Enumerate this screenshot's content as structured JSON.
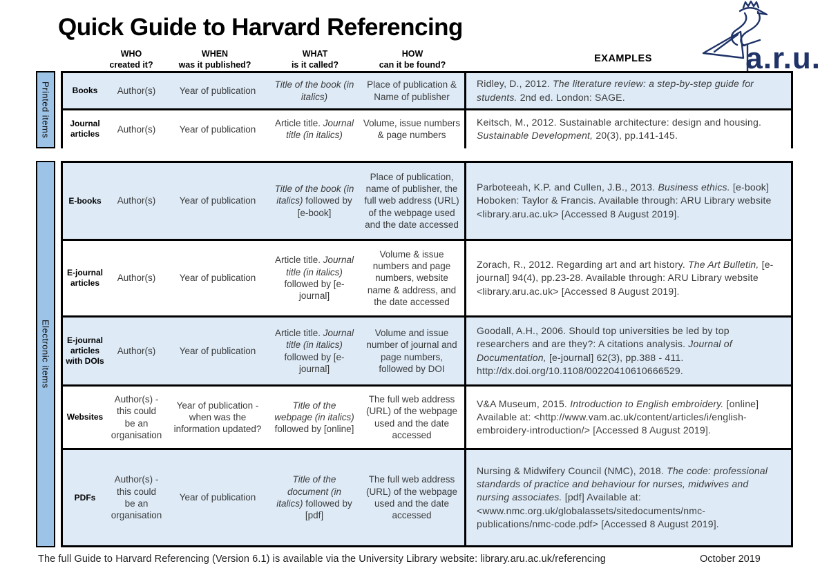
{
  "page": {
    "title": "Quick Guide to Harvard Referencing",
    "footer_text": "The full Guide to Harvard Referencing (Version 6.1) is available via the University Library website: library.aru.ac.uk/referencing",
    "footer_date": "October 2019"
  },
  "logo": {
    "brand": "a.r.u.",
    "icon": "aru-heron-crown-logo"
  },
  "colors": {
    "sidebar": "#9DC3E6",
    "shaded_row": "#DEEBF7",
    "border": "#000000",
    "navy": "#1F3368"
  },
  "header_columns": [
    {
      "line1": "WHO",
      "line2": "created it?"
    },
    {
      "line1": "WHEN",
      "line2": "was it published?"
    },
    {
      "line1": "WHAT",
      "line2": "is it called?"
    },
    {
      "line1": "HOW",
      "line2": "can it be found?"
    }
  ],
  "examples_header": "EXAMPLES",
  "sections": [
    {
      "label": "Printed items",
      "rows": [
        {
          "type": "Books",
          "shaded": true,
          "who": "Author(s)",
          "when": "Year of publication",
          "what": [
            [
              "Title of the book (in italics)",
              "i"
            ]
          ],
          "how": "Place of publication & Name of publisher",
          "example": [
            [
              "Ridley, D., 2012. ",
              "n"
            ],
            [
              "The literature review: a step-by-step guide for students. ",
              "i"
            ],
            [
              "2nd ed. London: SAGE.",
              "n"
            ]
          ]
        },
        {
          "type": "Journal articles",
          "shaded": false,
          "who": "Author(s)",
          "when": "Year of publication",
          "what": [
            [
              "Article title. ",
              "n"
            ],
            [
              "Journal title (in italics)",
              "i"
            ]
          ],
          "how": "Volume, issue numbers & page numbers",
          "example": [
            [
              "Keitsch, M., 2012. Sustainable architecture: design and housing. ",
              "n"
            ],
            [
              "Sustainable Development, ",
              "i"
            ],
            [
              "20(3), pp.141-145.",
              "n"
            ]
          ]
        }
      ]
    },
    {
      "label": "Electronic items",
      "rows": [
        {
          "type": "E-books",
          "shaded": true,
          "who": "Author(s)",
          "when": "Year of publication",
          "what": [
            [
              "Title of the book (in italics)",
              "i"
            ],
            [
              " followed by [e-book]",
              "n"
            ]
          ],
          "how": "Place of publication, name of publisher, the full web address (URL) of the webpage used and the date accessed",
          "example": [
            [
              "Parboteeah, K.P. and Cullen, J.B., 2013. ",
              "n"
            ],
            [
              "Business ethics. ",
              "i"
            ],
            [
              "[e-book] Hoboken: Taylor & Francis. Available through: ARU Library website <library.aru.ac.uk> [Accessed 8 August 2019].",
              "n"
            ]
          ]
        },
        {
          "type": "E-journal articles",
          "shaded": false,
          "who": "Author(s)",
          "when": "Year of publication",
          "what": [
            [
              "Article title. ",
              "n"
            ],
            [
              "Journal title (in italics)",
              "i"
            ],
            [
              " followed by [e-journal]",
              "n"
            ]
          ],
          "how": "Volume & issue numbers and page numbers, website name & address, and the date accessed",
          "example": [
            [
              "Zorach, R., 2012. Regarding art and art history. ",
              "n"
            ],
            [
              "The Art Bulletin, ",
              "i"
            ],
            [
              "[e-journal] 94(4), pp.23-28. Available through: ARU Library website <library.aru.ac.uk> [Accessed 8 August 2019].",
              "n"
            ]
          ]
        },
        {
          "type": "E-journal articles with DOIs",
          "shaded": true,
          "who": "Author(s)",
          "when": "Year of publication",
          "what": [
            [
              "Article title. ",
              "n"
            ],
            [
              "Journal title (in italics)",
              "i"
            ],
            [
              " followed by [e-journal]",
              "n"
            ]
          ],
          "how": "Volume and issue number of journal and page numbers, followed by DOI",
          "example": [
            [
              "Goodall, A.H., 2006. Should top universities be led by top researchers and are they?: A citations analysis. ",
              "n"
            ],
            [
              "Journal of Documentation, ",
              "i"
            ],
            [
              "[e-journal] 62(3), pp.388 - 411. http://dx.doi.org/10.1108/00220410610666529.",
              "n"
            ]
          ]
        },
        {
          "type": "Websites",
          "shaded": false,
          "who": "Author(s) - this could be an organisation",
          "when": "Year of publication - when was the information updated?",
          "what": [
            [
              "Title of the webpage (in italics)",
              "i"
            ],
            [
              " followed by [online]",
              "n"
            ]
          ],
          "how": "The full web address (URL) of the webpage used and the date accessed",
          "example": [
            [
              "V&A Museum, 2015. ",
              "n"
            ],
            [
              "Introduction to English embroidery. ",
              "i"
            ],
            [
              "[online] Available at: <http://www.vam.ac.uk/content/articles/i/english-embroidery-introduction/> [Accessed 8 August 2019].",
              "n"
            ]
          ]
        },
        {
          "type": "PDFs",
          "shaded": true,
          "who": "Author(s) - this could be an organisation",
          "when": "Year of publication",
          "what": [
            [
              "Title of the document (in italics)",
              "i"
            ],
            [
              " followed by [pdf]",
              "n"
            ]
          ],
          "how": "The full web address (URL) of the webpage used and the date accessed",
          "example": [
            [
              "Nursing & Midwifery Council (NMC), 2018. ",
              "n"
            ],
            [
              "The code: professional standards of practice and behaviour for nurses, midwives and nursing associates. ",
              "i"
            ],
            [
              "[pdf] Available at: <www.nmc.org.uk/globalassets/sitedocuments/nmc-publications/nmc-code.pdf> [Accessed 8 August 2019].",
              "n"
            ]
          ]
        }
      ]
    }
  ]
}
